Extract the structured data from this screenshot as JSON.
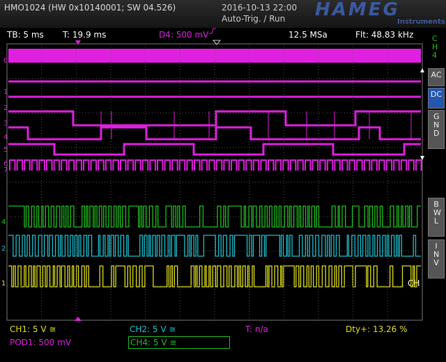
{
  "header": {
    "model": "HMO1024 (HW 0x10140001; SW 04.526)",
    "datetime": "2016-10-13 22:00",
    "trigger_status": "Auto-Trig. / Run",
    "brand": "HAMEG",
    "brand_sub": "Instruments"
  },
  "status_bar": {
    "timebase": "TB: 5 ms",
    "trigger_time": "T: 19.9 ms",
    "trigger_source": "D4: 500 mV",
    "sample_rate": "12.5 MSa",
    "filter": "Flt: 48.83 kHz"
  },
  "side_menu": {
    "channel": "CH4",
    "buttons": [
      "AC",
      "DC",
      "GND",
      "BWL",
      "INV"
    ]
  },
  "trace_labels": {
    "digital": [
      "0",
      "1",
      "2",
      "3",
      "4",
      "5",
      "6",
      "7"
    ],
    "analog": [
      "4",
      "2",
      "1"
    ],
    "cursor": "CH"
  },
  "footer": {
    "ch1": "CH1: 5 V ≅",
    "ch2": "CH2: 5 V ≅",
    "time": "T: n/a",
    "duty": "Dty+: 13.26 %",
    "pod1": "POD1: 500 mV",
    "ch4": "CH4: 5 V ≅"
  }
}
